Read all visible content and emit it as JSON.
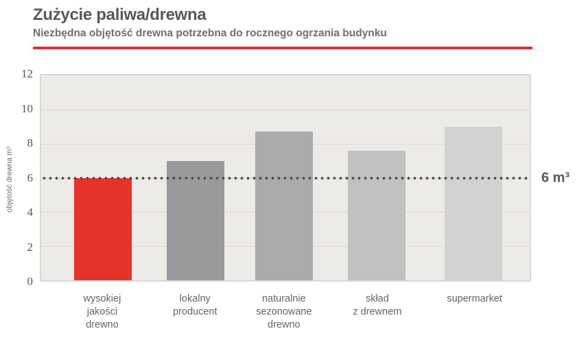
{
  "chart_data": {
    "type": "bar",
    "title": "Zużycie paliwa/drewna",
    "subtitle": "Niezbędna objętość drewna potrzebna do rocznego ogrzania budynku",
    "ylabel": "objętość drewna m³",
    "xlabel": "",
    "ylim": [
      0,
      12
    ],
    "yticks": [
      0,
      2,
      4,
      6,
      8,
      10,
      12
    ],
    "grid": true,
    "legend": false,
    "categories": [
      "wysokiej jakości drewno",
      "lokalny producent",
      "naturalnie sezonowane drewno",
      "skład z drewnem",
      "supermarket"
    ],
    "category_lines": [
      [
        "wysokiej",
        "jakości",
        "drewno"
      ],
      [
        "lokalny",
        "producent"
      ],
      [
        "naturalnie",
        "sezonowane",
        "drewno"
      ],
      [
        "skład",
        "z drewnem"
      ],
      [
        "supermarket"
      ]
    ],
    "values": [
      6.0,
      7.0,
      8.7,
      7.6,
      9.0
    ],
    "bar_colors": [
      "#e5332a",
      "#999a9b",
      "#ababab",
      "#c0c1c1",
      "#d2d2d2"
    ],
    "highlight_color": "#e5332a",
    "reference_line": {
      "value": 6,
      "label": "6 m³",
      "style": "dotted",
      "color": "#4a4a4a"
    },
    "colors": {
      "accent_red": "#da342e",
      "plot_background": "#edebe8",
      "gridline": "#ddd7d2",
      "title_text": "#58585a",
      "subtitle_text": "#6d6e70"
    }
  }
}
